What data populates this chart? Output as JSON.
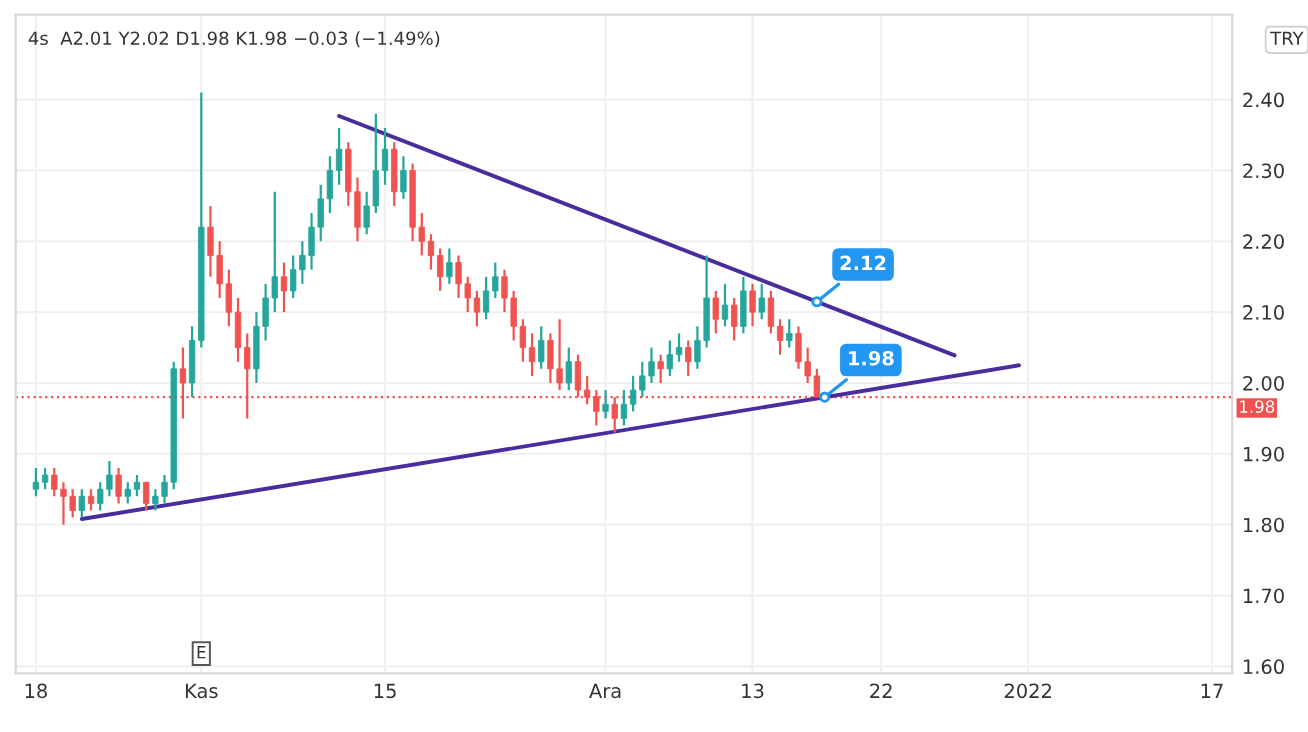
{
  "chart_data": {
    "type": "candlestick",
    "title": "4s  A2.01 Y2.02 D1.98 K1.98 −0.03 (−1.49%)",
    "categories": [
      "18",
      null,
      null,
      null,
      null,
      null,
      null,
      null,
      null,
      null,
      null,
      null,
      null,
      null,
      null,
      null,
      null,
      null,
      "Kas",
      null,
      null,
      null,
      null,
      null,
      null,
      null,
      null,
      null,
      null,
      null,
      null,
      null,
      null,
      null,
      null,
      null,
      null,
      null,
      "15",
      null,
      null,
      null,
      null,
      null,
      null,
      null,
      null,
      null,
      null,
      null,
      null,
      null,
      null,
      null,
      null,
      null,
      null,
      null,
      null,
      null,
      null,
      null,
      "Ara",
      null,
      null,
      null,
      null,
      null,
      null,
      null,
      null,
      null,
      null,
      null,
      null,
      null,
      null,
      null,
      "13",
      null,
      null,
      null,
      null,
      null,
      null,
      null,
      null,
      null,
      null,
      null,
      null,
      null,
      "22",
      null,
      null,
      null,
      null,
      null,
      null,
      null,
      null,
      null,
      null,
      null,
      null,
      null,
      null,
      null,
      "2022",
      null,
      null,
      null,
      null,
      null,
      null,
      null,
      null,
      null,
      null,
      null,
      null,
      null,
      null,
      null,
      null,
      null,
      null,
      null,
      "17",
      null,
      null
    ],
    "series": [
      {
        "ohlc": [
          [
            1.85,
            1.88,
            1.84,
            1.86
          ],
          [
            1.86,
            1.88,
            1.85,
            1.87
          ],
          [
            1.87,
            1.88,
            1.84,
            1.85
          ],
          [
            1.85,
            1.86,
            1.8,
            1.84
          ],
          [
            1.84,
            1.85,
            1.81,
            1.82
          ],
          [
            1.82,
            1.85,
            1.81,
            1.84
          ],
          [
            1.84,
            1.85,
            1.82,
            1.83
          ],
          [
            1.83,
            1.86,
            1.82,
            1.85
          ],
          [
            1.85,
            1.89,
            1.84,
            1.87
          ],
          [
            1.87,
            1.88,
            1.83,
            1.84
          ],
          [
            1.84,
            1.86,
            1.83,
            1.85
          ],
          [
            1.85,
            1.87,
            1.84,
            1.86
          ],
          [
            1.86,
            1.86,
            1.82,
            1.83
          ],
          [
            1.83,
            1.85,
            1.82,
            1.84
          ],
          [
            1.84,
            1.87,
            1.83,
            1.86
          ],
          [
            1.86,
            2.03,
            1.85,
            2.02
          ],
          [
            2.02,
            2.05,
            1.95,
            2.0
          ],
          [
            2.0,
            2.08,
            1.98,
            2.06
          ],
          [
            2.06,
            2.41,
            2.05,
            2.22
          ],
          [
            2.22,
            2.25,
            2.15,
            2.18
          ],
          [
            2.18,
            2.2,
            2.12,
            2.14
          ],
          [
            2.14,
            2.16,
            2.08,
            2.1
          ],
          [
            2.1,
            2.12,
            2.03,
            2.05
          ],
          [
            2.05,
            2.07,
            1.95,
            2.02
          ],
          [
            2.02,
            2.1,
            2.0,
            2.08
          ],
          [
            2.08,
            2.14,
            2.06,
            2.12
          ],
          [
            2.12,
            2.27,
            2.1,
            2.15
          ],
          [
            2.15,
            2.17,
            2.1,
            2.13
          ],
          [
            2.13,
            2.18,
            2.12,
            2.16
          ],
          [
            2.16,
            2.2,
            2.14,
            2.18
          ],
          [
            2.18,
            2.24,
            2.16,
            2.22
          ],
          [
            2.22,
            2.28,
            2.2,
            2.26
          ],
          [
            2.26,
            2.32,
            2.24,
            2.3
          ],
          [
            2.3,
            2.36,
            2.28,
            2.33
          ],
          [
            2.33,
            2.34,
            2.25,
            2.27
          ],
          [
            2.27,
            2.29,
            2.2,
            2.22
          ],
          [
            2.22,
            2.27,
            2.21,
            2.25
          ],
          [
            2.25,
            2.38,
            2.24,
            2.3
          ],
          [
            2.3,
            2.36,
            2.28,
            2.33
          ],
          [
            2.33,
            2.34,
            2.25,
            2.27
          ],
          [
            2.27,
            2.32,
            2.26,
            2.3
          ],
          [
            2.3,
            2.31,
            2.2,
            2.22
          ],
          [
            2.22,
            2.24,
            2.18,
            2.2
          ],
          [
            2.2,
            2.21,
            2.16,
            2.18
          ],
          [
            2.18,
            2.19,
            2.13,
            2.15
          ],
          [
            2.15,
            2.19,
            2.14,
            2.17
          ],
          [
            2.17,
            2.18,
            2.12,
            2.14
          ],
          [
            2.14,
            2.15,
            2.1,
            2.12
          ],
          [
            2.12,
            2.13,
            2.08,
            2.1
          ],
          [
            2.1,
            2.15,
            2.09,
            2.13
          ],
          [
            2.13,
            2.17,
            2.12,
            2.15
          ],
          [
            2.15,
            2.16,
            2.1,
            2.12
          ],
          [
            2.12,
            2.13,
            2.06,
            2.08
          ],
          [
            2.08,
            2.09,
            2.03,
            2.05
          ],
          [
            2.05,
            2.07,
            2.01,
            2.03
          ],
          [
            2.03,
            2.08,
            2.02,
            2.06
          ],
          [
            2.06,
            2.07,
            2.0,
            2.02
          ],
          [
            2.02,
            2.09,
            1.99,
            2.0
          ],
          [
            2.0,
            2.05,
            1.99,
            2.03
          ],
          [
            2.03,
            2.04,
            1.98,
            1.99
          ],
          [
            1.99,
            2.01,
            1.97,
            1.98
          ],
          [
            1.98,
            1.99,
            1.94,
            1.96
          ],
          [
            1.96,
            1.99,
            1.95,
            1.97
          ],
          [
            1.97,
            1.98,
            1.93,
            1.95
          ],
          [
            1.95,
            1.99,
            1.94,
            1.97
          ],
          [
            1.97,
            2.01,
            1.96,
            1.99
          ],
          [
            1.99,
            2.03,
            1.98,
            2.01
          ],
          [
            2.01,
            2.05,
            2.0,
            2.03
          ],
          [
            2.03,
            2.04,
            2.0,
            2.02
          ],
          [
            2.02,
            2.06,
            2.01,
            2.04
          ],
          [
            2.04,
            2.07,
            2.03,
            2.05
          ],
          [
            2.05,
            2.06,
            2.01,
            2.03
          ],
          [
            2.03,
            2.08,
            2.02,
            2.06
          ],
          [
            2.06,
            2.18,
            2.05,
            2.12
          ],
          [
            2.12,
            2.13,
            2.07,
            2.09
          ],
          [
            2.09,
            2.14,
            2.08,
            2.11
          ],
          [
            2.11,
            2.12,
            2.06,
            2.08
          ],
          [
            2.08,
            2.15,
            2.07,
            2.13
          ],
          [
            2.13,
            2.14,
            2.08,
            2.1
          ],
          [
            2.1,
            2.14,
            2.09,
            2.12
          ],
          [
            2.12,
            2.13,
            2.07,
            2.08
          ],
          [
            2.08,
            2.09,
            2.04,
            2.06
          ],
          [
            2.06,
            2.09,
            2.05,
            2.07
          ],
          [
            2.07,
            2.08,
            2.02,
            2.03
          ],
          [
            2.03,
            2.05,
            2.0,
            2.01
          ],
          [
            2.01,
            2.02,
            1.98,
            1.98
          ],
          null,
          null,
          null,
          null,
          null,
          null,
          null,
          null,
          null,
          null,
          null,
          null,
          null,
          null,
          null,
          null,
          null,
          null,
          null,
          null,
          null,
          null,
          null,
          null,
          null,
          null,
          null,
          null,
          null,
          null,
          null,
          null,
          null,
          null,
          null,
          null,
          null,
          null,
          null,
          null,
          null,
          null,
          null,
          null,
          null
        ]
      },
      {
        "type": "line",
        "color": "#4a2d9c",
        "values": [
          null,
          null,
          null,
          null,
          null,
          1.808,
          null,
          null,
          null,
          null,
          null,
          null,
          null,
          null,
          null,
          null,
          null,
          null,
          null,
          null,
          null,
          null,
          null,
          null,
          null,
          null,
          null,
          null,
          null,
          null,
          null,
          null,
          null,
          null,
          null,
          null,
          null,
          null,
          null,
          null,
          null,
          null,
          null,
          null,
          null,
          null,
          null,
          null,
          null,
          null,
          null,
          null,
          null,
          null,
          null,
          null,
          null,
          null,
          null,
          null,
          null,
          null,
          null,
          null,
          null,
          null,
          null,
          null,
          null,
          null,
          null,
          null,
          null,
          null,
          null,
          null,
          null,
          null,
          null,
          null,
          null,
          null,
          null,
          null,
          null,
          null,
          null,
          null,
          null,
          null,
          null,
          null,
          null,
          null,
          null,
          null,
          null,
          null,
          null,
          null,
          null,
          null,
          null,
          null,
          null,
          null,
          null,
          2.025,
          null,
          null,
          null,
          null,
          null,
          null,
          null,
          null,
          null,
          null,
          null,
          null,
          null,
          null,
          null,
          null,
          null,
          null,
          null,
          null,
          null,
          null,
          null
        ]
      },
      {
        "type": "line",
        "color": "#4a2d9c",
        "values": [
          null,
          null,
          null,
          null,
          null,
          null,
          null,
          null,
          null,
          null,
          null,
          null,
          null,
          null,
          null,
          null,
          null,
          null,
          null,
          null,
          null,
          null,
          null,
          null,
          null,
          null,
          null,
          null,
          null,
          null,
          null,
          null,
          null,
          2.377,
          null,
          null,
          null,
          null,
          null,
          null,
          null,
          null,
          null,
          null,
          null,
          null,
          null,
          null,
          null,
          null,
          null,
          null,
          null,
          null,
          null,
          null,
          null,
          null,
          null,
          null,
          null,
          null,
          null,
          null,
          null,
          null,
          null,
          null,
          null,
          null,
          null,
          null,
          null,
          null,
          null,
          null,
          null,
          null,
          null,
          null,
          null,
          null,
          null,
          null,
          null,
          null,
          null,
          null,
          null,
          null,
          null,
          null,
          null,
          null,
          null,
          null,
          null,
          null,
          null,
          null,
          2.039,
          null,
          null,
          null,
          null,
          null,
          null,
          null,
          null,
          null,
          null,
          null,
          null,
          null,
          null,
          null,
          null,
          null,
          null,
          null,
          null,
          null,
          null,
          null,
          null,
          null,
          null,
          null,
          null,
          null,
          null
        ]
      }
    ],
    "ylim": [
      1.59,
      2.52
    ],
    "yticks": [
      {
        "value": 1.6,
        "label": "1.60"
      },
      {
        "value": 1.7,
        "label": "1.70"
      },
      {
        "value": 1.8,
        "label": "1.80"
      },
      {
        "value": 1.9,
        "label": "1.90"
      },
      {
        "value": 2.0,
        "label": "2.00"
      },
      {
        "value": 2.1,
        "label": "2.10"
      },
      {
        "value": 2.2,
        "label": "2.20"
      },
      {
        "value": 2.3,
        "label": "2.30"
      },
      {
        "value": 2.4,
        "label": "2.40"
      }
    ],
    "ref_lines": [
      {
        "axis": "y",
        "value": 1.98,
        "label": "1.98",
        "color": "#ef5350",
        "line_style": "dotted"
      }
    ],
    "annotations": [
      "TRY",
      {
        "text": "E",
        "x": "Kas"
      },
      "2.12",
      {
        "text": "1.98",
        "y": 1.98
      }
    ],
    "grid": true
  }
}
